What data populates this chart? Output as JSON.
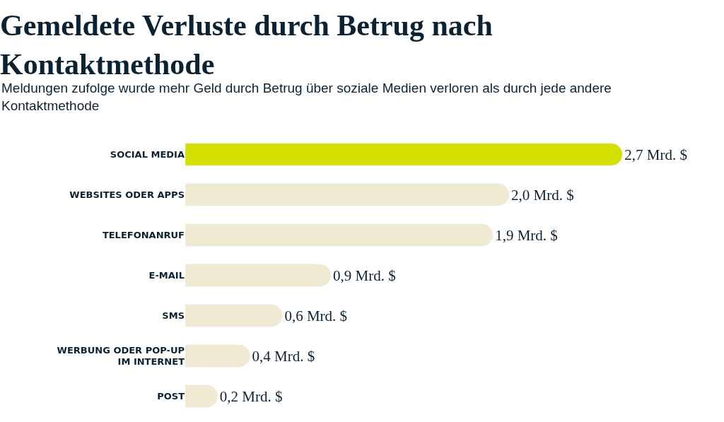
{
  "chart_data": {
    "type": "bar",
    "orientation": "horizontal",
    "title": "Gemeldete Verluste durch Betrug nach Kontaktmethode",
    "subtitle": "Meldungen zufolge wurde mehr Geld durch Betrug über soziale Medien verloren als durch jede andere Kontaktmethode",
    "categories": [
      "SOCIAL MEDIA",
      "WEBSITES ODER APPS",
      "TELEFONANRUF",
      "E-MAIL",
      "SMS",
      "WERBUNG ODER POP-UP IM INTERNET",
      "POST"
    ],
    "values": [
      2.7,
      2.0,
      1.9,
      0.9,
      0.6,
      0.4,
      0.2
    ],
    "value_labels": [
      "2,7 Mrd. $",
      "2,0 Mrd. $",
      "1,9 Mrd. $",
      "0,9 Mrd. $",
      "0,6 Mrd. $",
      "0,4 Mrd. $",
      "0,2 Mrd. $"
    ],
    "colors": [
      "#d4e000",
      "#f0ead2",
      "#f0ead2",
      "#f0ead2",
      "#f0ead2",
      "#f0ead2",
      "#f0ead2"
    ],
    "data_labels": false
  }
}
